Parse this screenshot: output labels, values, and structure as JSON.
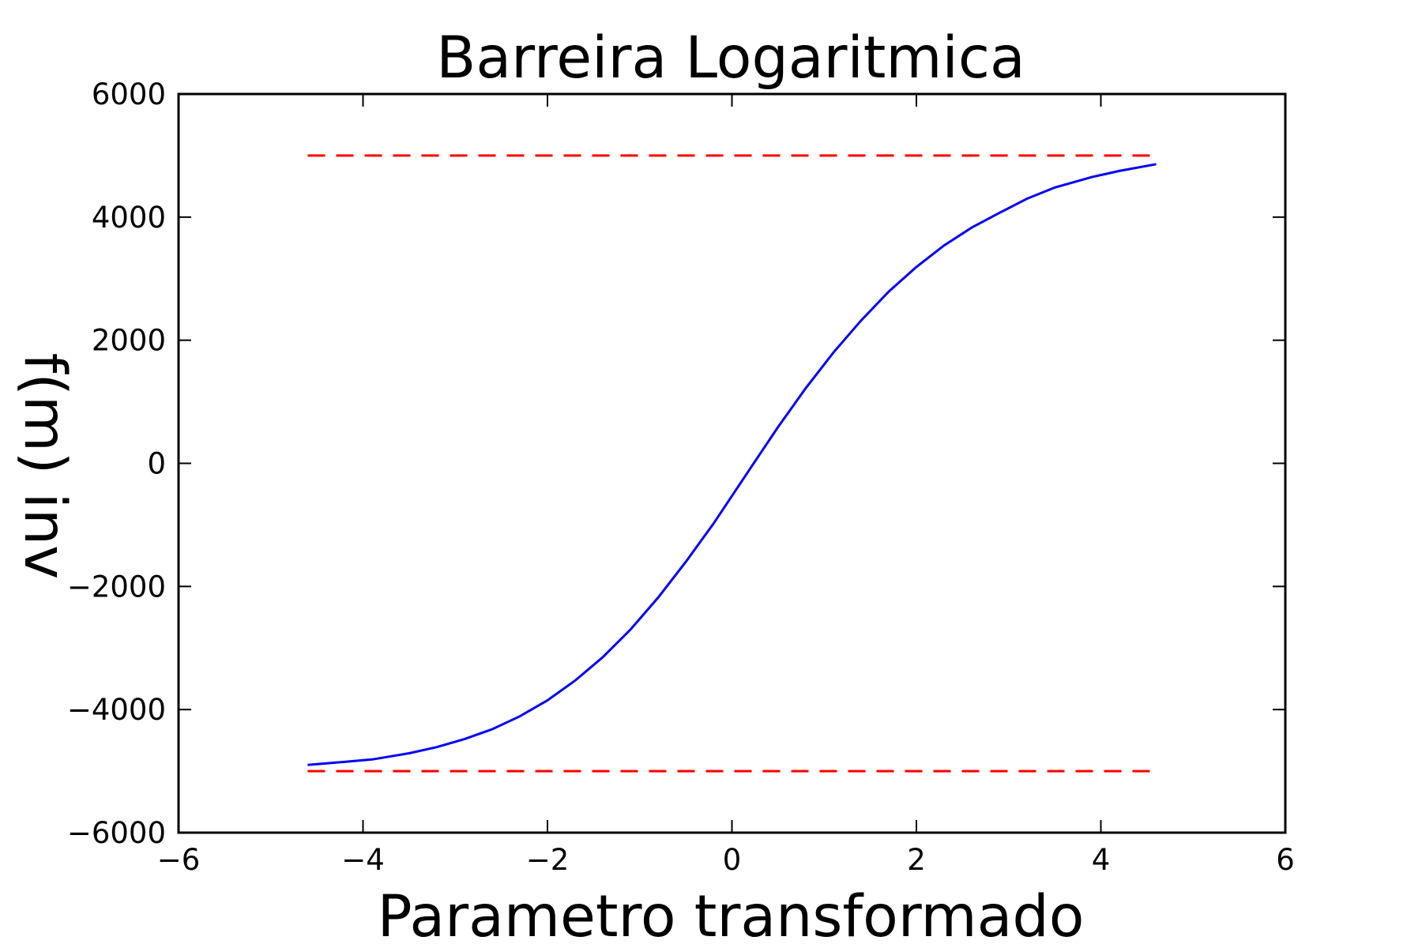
{
  "chart_data": {
    "type": "line",
    "title": "Barreira Logaritmica",
    "xlabel": "Parametro transformado",
    "ylabel": "f(m) inv",
    "xlim": [
      -6,
      6
    ],
    "ylim": [
      -6000,
      6000
    ],
    "x_ticks": [
      "−6",
      "−4",
      "−2",
      "0",
      "2",
      "4",
      "6"
    ],
    "y_ticks": [
      "−6000",
      "−4000",
      "−2000",
      "0",
      "2000",
      "4000",
      "6000"
    ],
    "grid": false,
    "series": [
      {
        "color": "#0000ff",
        "style": "solid",
        "x": [
          -4.6,
          -4.2,
          -3.9,
          -3.5,
          -3.2,
          -2.9,
          -2.6,
          -2.3,
          -2.0,
          -1.7,
          -1.4,
          -1.1,
          -0.8,
          -0.5,
          -0.2,
          0.0,
          0.2,
          0.5,
          0.8,
          1.1,
          1.4,
          1.7,
          2.0,
          2.3,
          2.6,
          2.9,
          3.2,
          3.5,
          3.9,
          4.2,
          4.6
        ],
        "y": [
          -4900,
          -4850,
          -4810,
          -4710,
          -4610,
          -4480,
          -4320,
          -4110,
          -3850,
          -3530,
          -3150,
          -2700,
          -2180,
          -1600,
          -980,
          -530,
          -80,
          590,
          1220,
          1800,
          2320,
          2790,
          3190,
          3540,
          3830,
          4070,
          4300,
          4480,
          4650,
          4750,
          4860
        ]
      },
      {
        "color": "#ff0000",
        "style": "dashed",
        "x": [
          -4.6,
          4.6
        ],
        "y": [
          5000,
          5000
        ]
      },
      {
        "color": "#ff0000",
        "style": "dashed",
        "x": [
          -4.6,
          4.6
        ],
        "y": [
          -5000,
          -5000
        ]
      }
    ]
  }
}
